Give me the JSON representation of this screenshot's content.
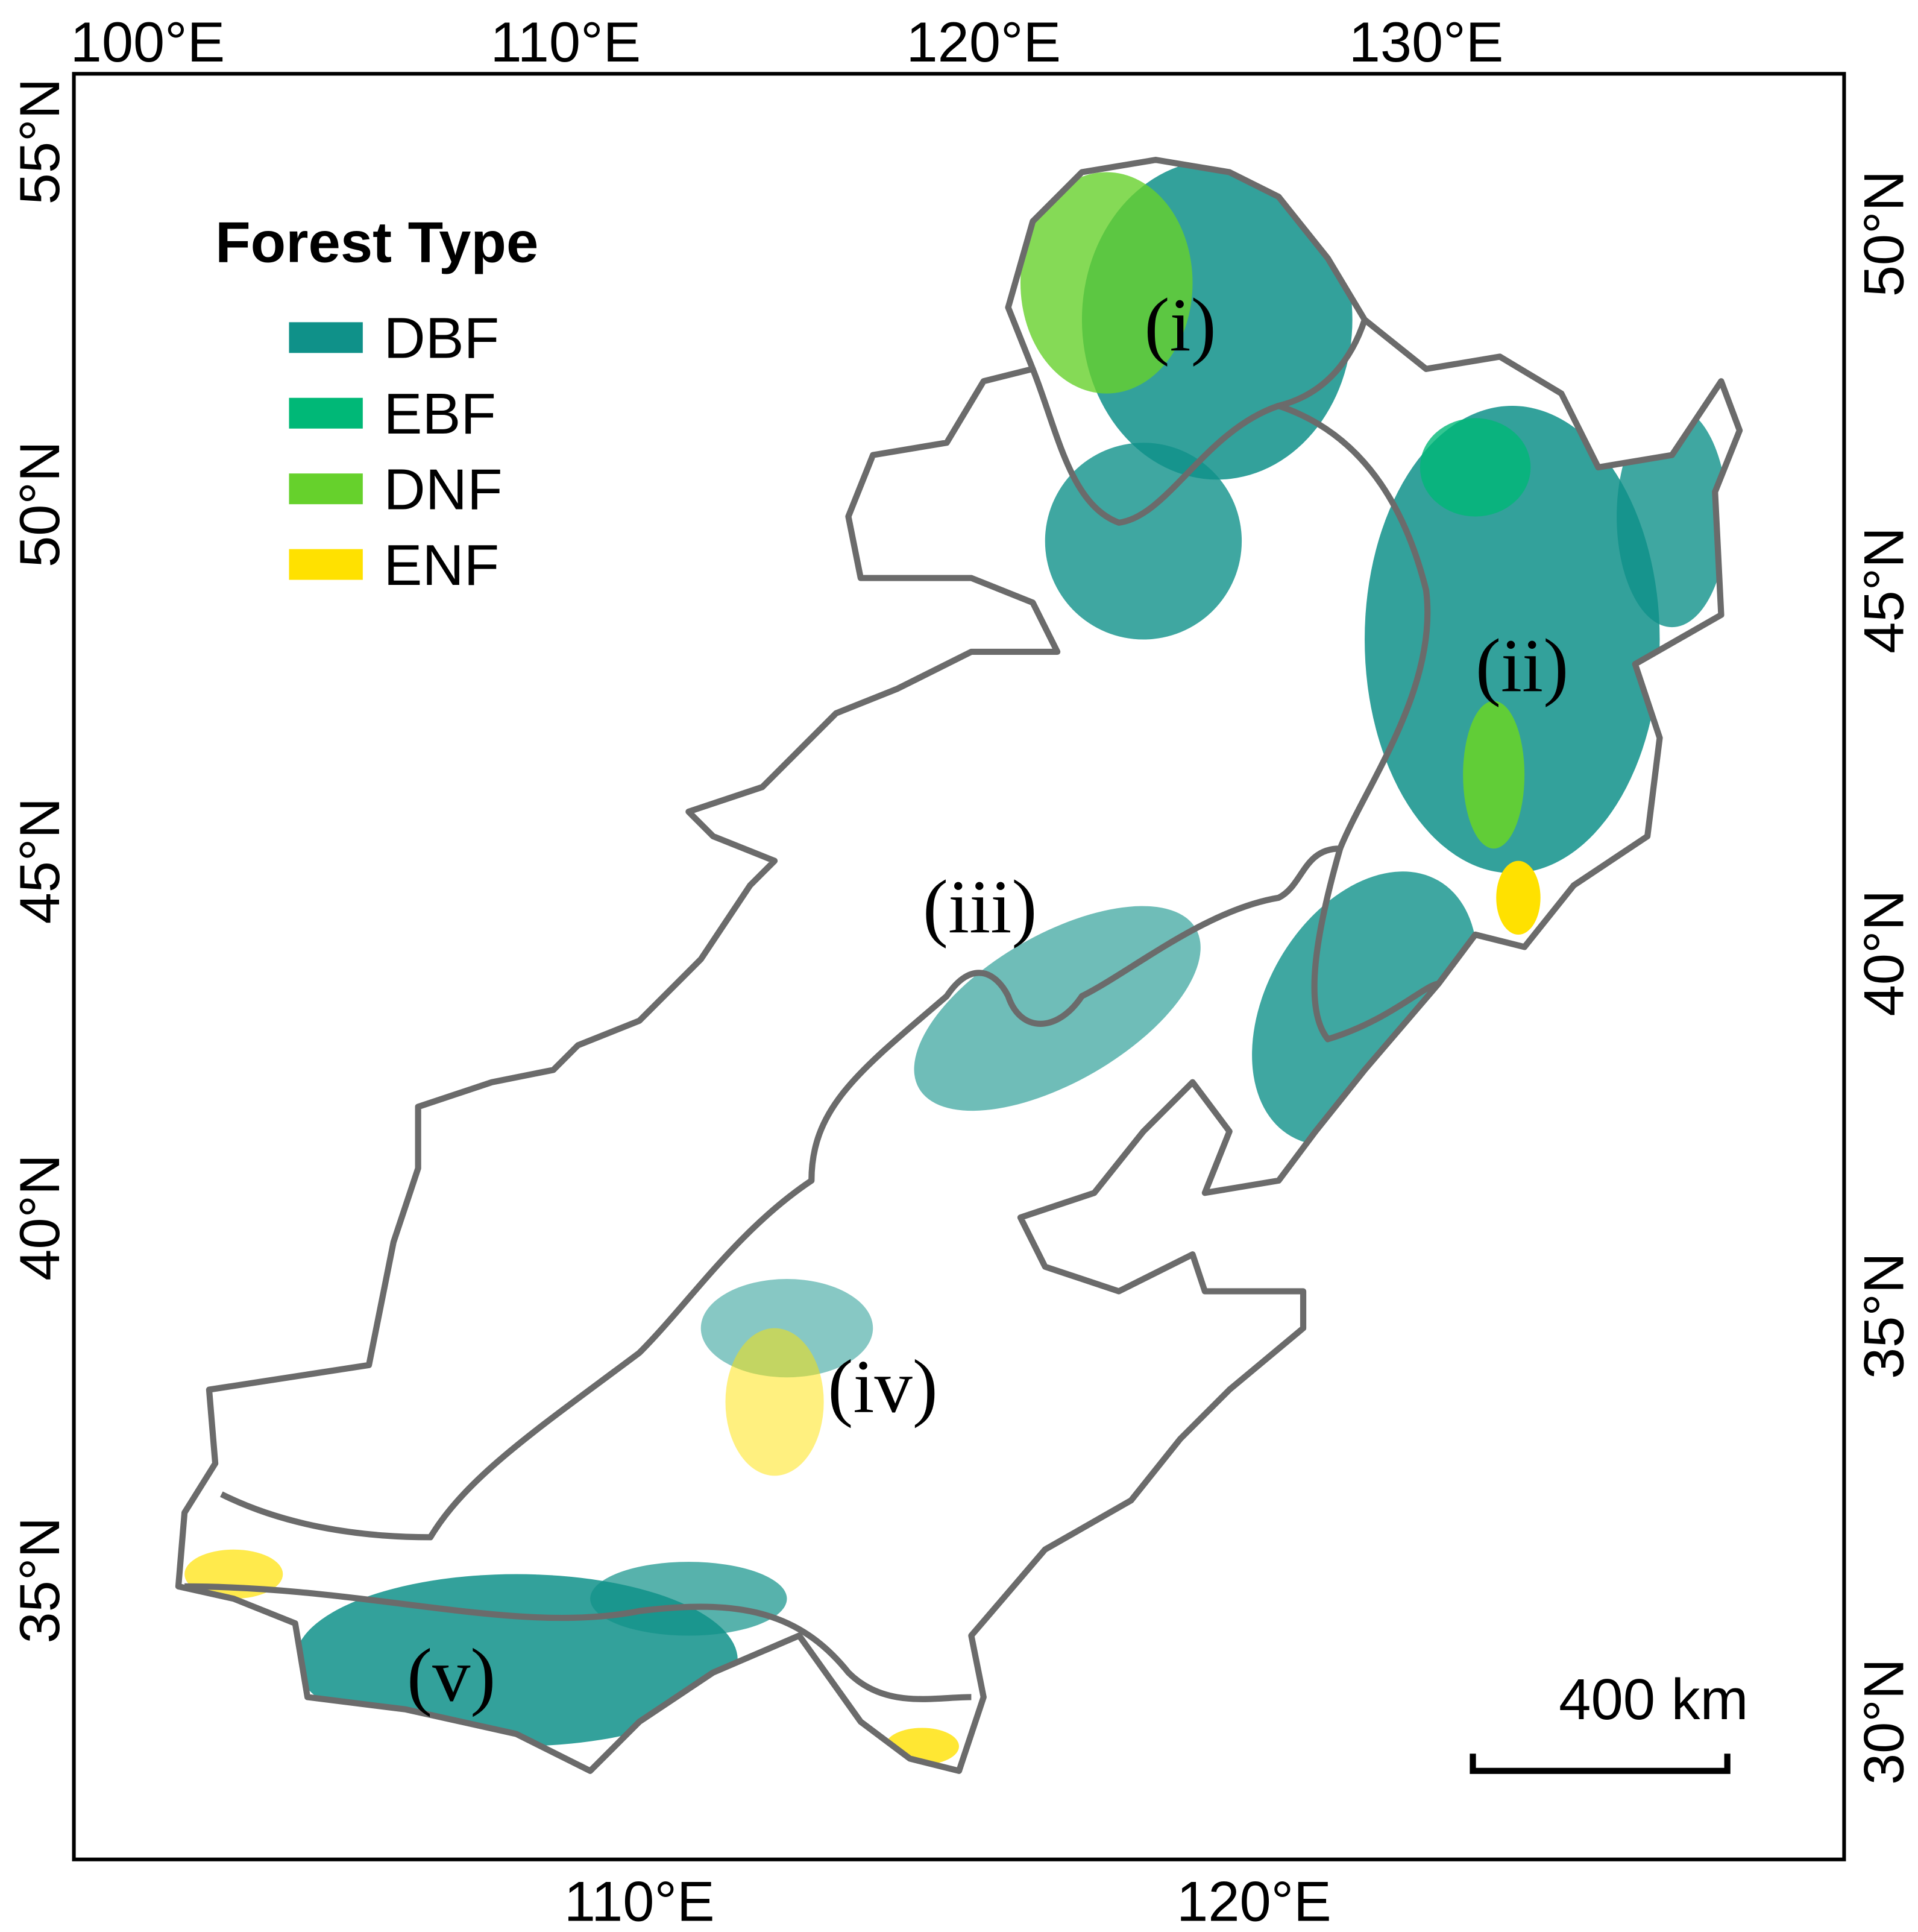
{
  "legend": {
    "title": "Forest Type",
    "items": [
      {
        "label": "DBF",
        "color": "#0f9189"
      },
      {
        "label": "EBF",
        "color": "#00b877"
      },
      {
        "label": "DNF",
        "color": "#66d12c"
      },
      {
        "label": "ENF",
        "color": "#ffe100"
      }
    ]
  },
  "axes": {
    "top": [
      "100°E",
      "110°E",
      "120°E",
      "130°E"
    ],
    "bottom": [
      "110°E",
      "120°E"
    ],
    "left": [
      "55°N",
      "50°N",
      "45°N",
      "40°N",
      "35°N"
    ],
    "right": [
      "50°N",
      "45°N",
      "40°N",
      "35°N",
      "30°N"
    ]
  },
  "regions": [
    "(i)",
    "(ii)",
    "(iii)",
    "(iv)",
    "(v)"
  ],
  "scale_bar": {
    "label": "400 km"
  }
}
